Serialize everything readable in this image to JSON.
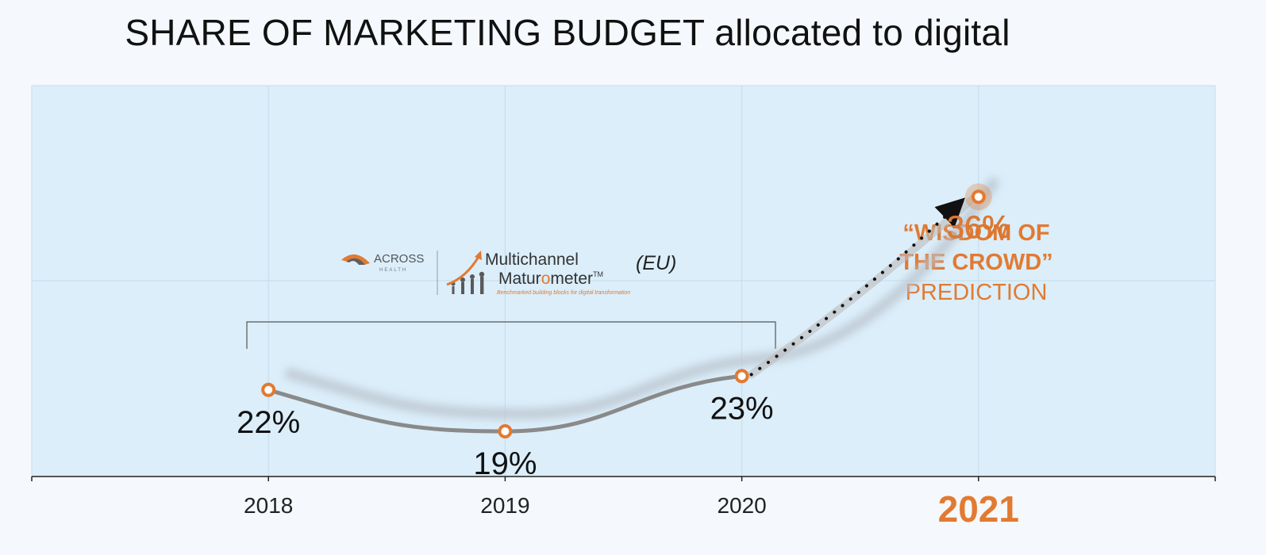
{
  "chart_data": {
    "type": "line",
    "title": "SHARE OF MARKETING BUDGET allocated to digital",
    "categories": [
      "2018",
      "2019",
      "2020",
      "2021"
    ],
    "series": [
      {
        "values": [
          22,
          19,
          23,
          36
        ],
        "labels": [
          "22%",
          "19%",
          "23%",
          "36%"
        ],
        "prediction_from_index": 2
      }
    ],
    "ylim": [
      0,
      60
    ],
    "highlight_category": "2021",
    "annotations": {
      "prediction_line1": "“WISDOM OF",
      "prediction_line2": "THE CROWD”",
      "prediction_line3": "PREDICTION"
    },
    "source": {
      "brand": "ACROSS",
      "brand_sub": "HEALTH",
      "product_line1": "Multichannel",
      "product_line2_a": "Matur",
      "product_line2_b": "o",
      "product_line2_c": "meter",
      "trademark": "TM",
      "tagline": "Benchmarked building blocks for digital transformation",
      "region": "(EU)"
    },
    "colors": {
      "accent": "#e27a31",
      "line": "#8a8a8a",
      "plot_bg": "#dbeefa",
      "page_bg": "#f5f8fc"
    }
  }
}
